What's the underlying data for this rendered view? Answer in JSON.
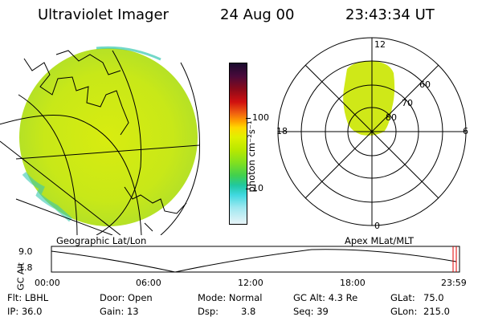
{
  "header": {
    "instrument": "Ultraviolet Imager",
    "date": "24 Aug 00",
    "time": "23:43:34 UT"
  },
  "panels": {
    "left_caption": "Geographic Lat/Lon",
    "right_caption": "Apex MLat/MLT"
  },
  "colorbar": {
    "label": "photon cm⁻²s⁻¹",
    "ticks": [
      "100",
      "10"
    ],
    "colors": [
      "#1a0a2e",
      "#4a0a3a",
      "#8a0a1a",
      "#d01010",
      "#f06010",
      "#ffa000",
      "#ffd800",
      "#e0f000",
      "#b8e800",
      "#80e020",
      "#40d050",
      "#20c8a0",
      "#40d8e0",
      "#a0e8f0",
      "#e8f4f8"
    ]
  },
  "polar_plot": {
    "mlt_labels": [
      "12",
      "18",
      "6",
      "0"
    ],
    "lat_labels": [
      "60",
      "70",
      "80"
    ]
  },
  "altitude_strip": {
    "ylabel": "GC Alt",
    "yticks": [
      "9.0",
      "1.8"
    ],
    "xticks": [
      "00:00",
      "06:00",
      "12:00",
      "18:00",
      "23:59"
    ]
  },
  "status": {
    "flt": "Flt: LBHL",
    "ip": "IP: 36.0",
    "door": "Door: Open",
    "gain": "Gain: 13",
    "mode": "Mode: Normal",
    "dsp_label": "Dsp:",
    "dsp_value": "3.8",
    "gcalt": "GC Alt: 4.3 Re",
    "seq": "Seq: 39",
    "glat_label": "GLat:",
    "glat_value": "75.0",
    "glon_label": "GLon:",
    "glon_value": "215.0"
  }
}
